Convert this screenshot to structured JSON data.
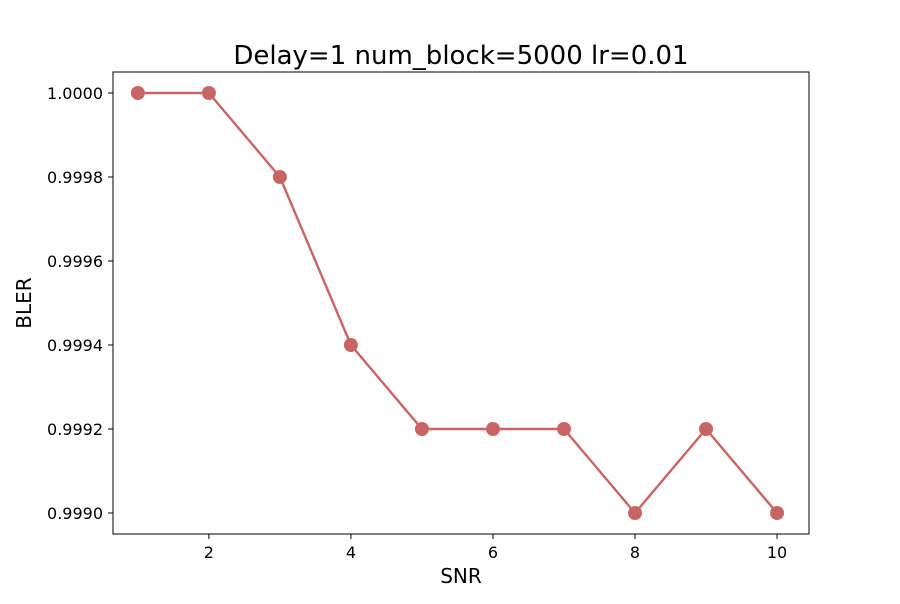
{
  "chart_data": {
    "type": "line",
    "title": "Delay=1 num_block=5000 lr=0.01",
    "xlabel": "SNR",
    "ylabel": "BLER",
    "xlim": [
      0.65,
      10.45
    ],
    "ylim": [
      0.99895,
      1.00005
    ],
    "xticks": [
      2,
      4,
      6,
      8,
      10
    ],
    "xtick_labels": [
      "2",
      "4",
      "6",
      "8",
      "10"
    ],
    "yticks": [
      0.999,
      0.9992,
      0.9994,
      0.9996,
      0.9998,
      1.0
    ],
    "ytick_labels": [
      "0.9990",
      "0.9992",
      "0.9994",
      "0.9996",
      "0.9998",
      "1.0000"
    ],
    "grid": false,
    "legend": "none",
    "series": [
      {
        "x": [
          1,
          2,
          3,
          4,
          5,
          6,
          7,
          8,
          9,
          10
        ],
        "values": [
          1.0,
          1.0,
          0.9998,
          0.9994,
          0.9992,
          0.9992,
          0.9992,
          0.999,
          0.9992,
          0.999
        ],
        "color": "#c96464",
        "marker": "circle"
      }
    ]
  }
}
